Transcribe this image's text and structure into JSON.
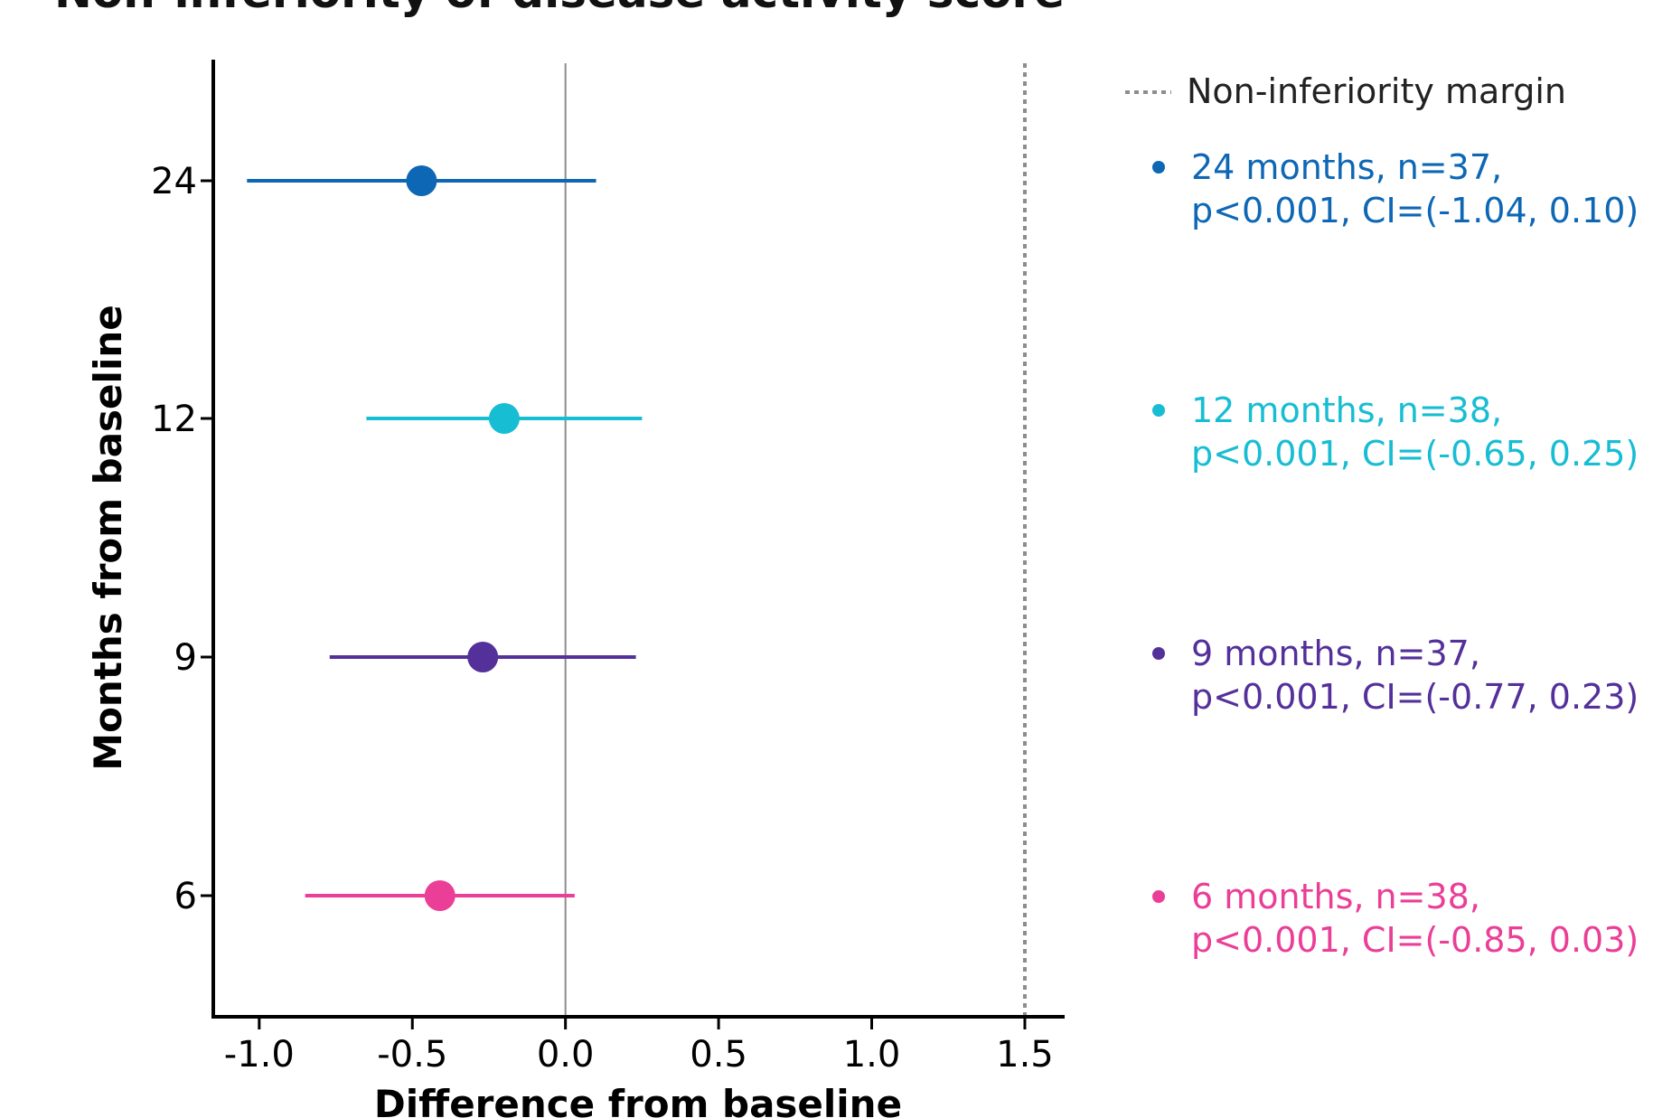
{
  "chart_data": {
    "type": "forest",
    "title": "Non-inferiority of disease activity score",
    "xlabel": "Difference from baseline",
    "ylabel": "Months from baseline",
    "xlim": [
      -1.15,
      1.63
    ],
    "x_ticks": [
      -1.0,
      -0.5,
      0.0,
      0.5,
      1.0,
      1.5
    ],
    "x_tick_labels": [
      "-1.0",
      "-0.5",
      "0.0",
      "0.5",
      "1.0",
      "1.5"
    ],
    "y_categories": [
      "6",
      "9",
      "12",
      "24"
    ],
    "reference_line": 0.0,
    "non_inferiority_margin": 1.5,
    "margin_legend_label": "Non-inferiority margin",
    "grid": false,
    "legend_position": "right",
    "series": [
      {
        "category": "24",
        "estimate": -0.47,
        "ci": [
          -1.04,
          0.1
        ],
        "color": "#0E67B5",
        "legend_line1": "24 months, n=37,",
        "legend_line2": "p<0.001, CI=(-1.04, 0.10)"
      },
      {
        "category": "12",
        "estimate": -0.2,
        "ci": [
          -0.65,
          0.25
        ],
        "color": "#17BDD3",
        "legend_line1": "12 months, n=38,",
        "legend_line2": "p<0.001, CI=(-0.65, 0.25)"
      },
      {
        "category": "9",
        "estimate": -0.27,
        "ci": [
          -0.77,
          0.23
        ],
        "color": "#53309A",
        "legend_line1": "9 months, n=37,",
        "legend_line2": "p<0.001, CI=(-0.77, 0.23)"
      },
      {
        "category": "6",
        "estimate": -0.41,
        "ci": [
          -0.85,
          0.03
        ],
        "color": "#EA3E97",
        "legend_line1": "6 months, n=38,",
        "legend_line2": "p<0.001, CI=(-0.85, 0.03)"
      }
    ]
  }
}
